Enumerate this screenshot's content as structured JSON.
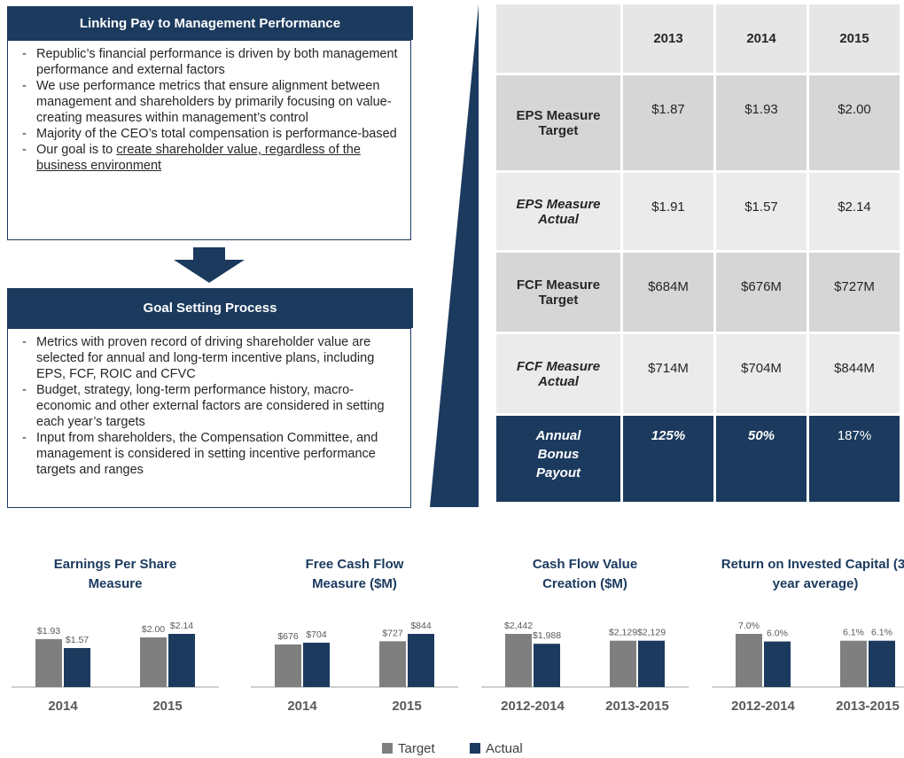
{
  "panels": [
    {
      "title": "Linking Pay to Management Performance",
      "bullets": [
        "Republic’s financial performance is driven by both management performance and external factors",
        "We use performance metrics that ensure alignment between management and shareholders by primarily focusing on value-creating measures within management’s control",
        "Majority of the CEO’s total compensation is performance-based",
        {
          "text": "Our goal is to ",
          "underline": "create shareholder value, regardless of the business environment"
        }
      ]
    },
    {
      "title": "Goal Setting Process",
      "bullets": [
        "Metrics with proven record of driving shareholder value are selected for annual and long-term incentive plans, including EPS, FCF, ROIC and CFVC",
        "Budget, strategy, long-term performance history, macro-economic and other external factors are considered in setting each year’s targets",
        "Input from shareholders, the Compensation Committee, and management is considered in setting incentive performance targets and ranges"
      ]
    }
  ],
  "table": {
    "columns": [
      "2013",
      "2014",
      "2015"
    ],
    "rows": [
      {
        "label": "EPS Measure Target",
        "cells": [
          "$1.87",
          "$1.93",
          "$2.00"
        ]
      },
      {
        "label": "EPS Measure Actual",
        "cells": [
          "$1.91",
          "$1.57",
          "$2.14"
        ]
      },
      {
        "label": "FCF Measure Target",
        "cells": [
          "$684M",
          "$676M",
          "$727M"
        ]
      },
      {
        "label": "FCF Measure Actual",
        "cells": [
          "$714M",
          "$704M",
          "$844M"
        ]
      },
      {
        "label": "Annual Bonus Payout",
        "cells": [
          "125%",
          "50%",
          "187%"
        ]
      }
    ]
  },
  "chart_data": [
    {
      "type": "bar",
      "title": "Earnings Per Share Measure",
      "categories": [
        "2014",
        "2015"
      ],
      "series": [
        {
          "name": "Target",
          "color": "#7f7f7f",
          "values": [
            1.93,
            2.0
          ],
          "value_labels": [
            "$1.93",
            "$2.00"
          ]
        },
        {
          "name": "Actual",
          "color": "#1b3a5e",
          "values": [
            1.57,
            2.14
          ],
          "value_labels": [
            "$1.57",
            "$2.14"
          ]
        }
      ]
    },
    {
      "type": "bar",
      "title": "Free Cash Flow Measure ($M)",
      "categories": [
        "2014",
        "2015"
      ],
      "series": [
        {
          "name": "Target",
          "color": "#7f7f7f",
          "values": [
            676,
            727
          ],
          "value_labels": [
            "$676",
            "$727"
          ]
        },
        {
          "name": "Actual",
          "color": "#1b3a5e",
          "values": [
            704,
            844
          ],
          "value_labels": [
            "$704",
            "$844"
          ]
        }
      ]
    },
    {
      "type": "bar",
      "title": "Cash Flow Value Creation ($M)",
      "categories": [
        "2012-2014",
        "2013-2015"
      ],
      "series": [
        {
          "name": "Target",
          "color": "#7f7f7f",
          "values": [
            2442,
            2129
          ],
          "value_labels": [
            "$2,442",
            "$2,129"
          ]
        },
        {
          "name": "Actual",
          "color": "#1b3a5e",
          "values": [
            1988,
            2129
          ],
          "value_labels": [
            "$1,988",
            "$2,129"
          ]
        }
      ]
    },
    {
      "type": "bar",
      "title": "Return on Invested Capital (3-year average)",
      "categories": [
        "2012-2014",
        "2013-2015"
      ],
      "series": [
        {
          "name": "Target",
          "color": "#7f7f7f",
          "values": [
            7.0,
            6.1
          ],
          "value_labels": [
            "7.0%",
            "6.1%"
          ]
        },
        {
          "name": "Actual",
          "color": "#1b3a5e",
          "values": [
            6.0,
            6.1
          ],
          "value_labels": [
            "6.0%",
            "6.1%"
          ]
        }
      ]
    }
  ]
}
